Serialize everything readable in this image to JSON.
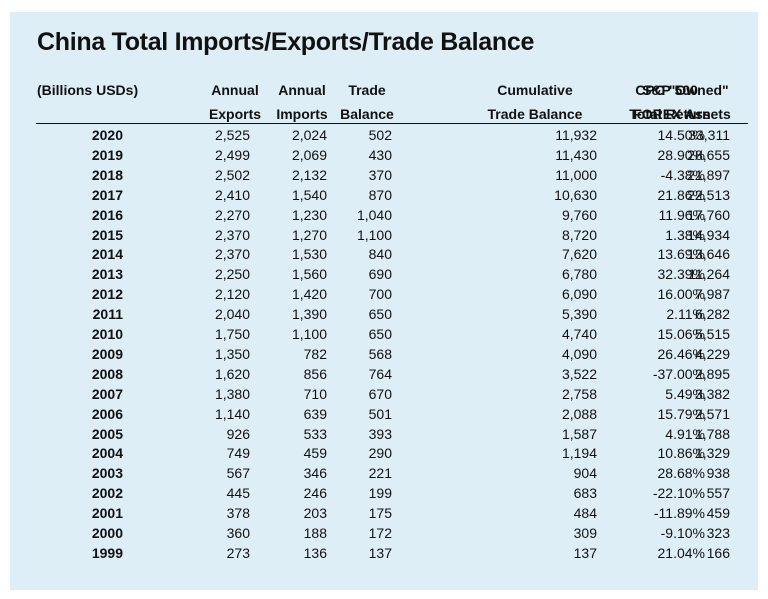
{
  "title": "China Total Imports/Exports/Trade Balance",
  "colors": {
    "background": "#deeef6",
    "text": "#111111"
  },
  "chart_data": {
    "type": "table",
    "title": "China Total Imports/Exports/Trade Balance",
    "unit_note": "(Billions USDs)",
    "columns": [
      [
        "Annual",
        "Exports"
      ],
      [
        "Annual",
        "Imports"
      ],
      [
        "Trade",
        "Balance"
      ],
      [
        "Cumulative",
        "Trade Balance"
      ],
      [
        "S&P 500",
        "Total Return"
      ],
      [
        "CPC \"Owned\"",
        "FOREX Assets"
      ]
    ],
    "rows": [
      [
        "2020",
        "2,525",
        "2,024",
        "502",
        "11,932",
        "14.50%",
        "33,311"
      ],
      [
        "2019",
        "2,499",
        "2,069",
        "430",
        "11,430",
        "28.90%",
        "28,655"
      ],
      [
        "2018",
        "2,502",
        "2,132",
        "370",
        "11,000",
        "-4.38%",
        "21,897"
      ],
      [
        "2017",
        "2,410",
        "1,540",
        "870",
        "10,630",
        "21.86%",
        "22,513"
      ],
      [
        "2016",
        "2,270",
        "1,230",
        "1,040",
        "9,760",
        "11.96%",
        "17,760"
      ],
      [
        "2015",
        "2,370",
        "1,270",
        "1,100",
        "8,720",
        "1.38%",
        "14,934"
      ],
      [
        "2014",
        "2,370",
        "1,530",
        "840",
        "7,620",
        "13.69%",
        "13,646"
      ],
      [
        "2013",
        "2,250",
        "1,560",
        "690",
        "6,780",
        "32.39%",
        "11,264"
      ],
      [
        "2012",
        "2,120",
        "1,420",
        "700",
        "6,090",
        "16.00%",
        "7,987"
      ],
      [
        "2011",
        "2,040",
        "1,390",
        "650",
        "5,390",
        "2.11%",
        "6,282"
      ],
      [
        "2010",
        "1,750",
        "1,100",
        "650",
        "4,740",
        "15.06%",
        "5,515"
      ],
      [
        "2009",
        "1,350",
        "782",
        "568",
        "4,090",
        "26.46%",
        "4,229"
      ],
      [
        "2008",
        "1,620",
        "856",
        "764",
        "3,522",
        "-37.00%",
        "2,895"
      ],
      [
        "2007",
        "1,380",
        "710",
        "670",
        "2,758",
        "5.49%",
        "3,382"
      ],
      [
        "2006",
        "1,140",
        "639",
        "501",
        "2,088",
        "15.79%",
        "2,571"
      ],
      [
        "2005",
        "926",
        "533",
        "393",
        "1,587",
        "4.91%",
        "1,788"
      ],
      [
        "2004",
        "749",
        "459",
        "290",
        "1,194",
        "10.86%",
        "1,329"
      ],
      [
        "2003",
        "567",
        "346",
        "221",
        "904",
        "28.68%",
        "938"
      ],
      [
        "2002",
        "445",
        "246",
        "199",
        "683",
        "-22.10%",
        "557"
      ],
      [
        "2001",
        "378",
        "203",
        "175",
        "484",
        "-11.89%",
        "459"
      ],
      [
        "2000",
        "360",
        "188",
        "172",
        "309",
        "-9.10%",
        "323"
      ],
      [
        "1999",
        "273",
        "136",
        "137",
        "137",
        "21.04%",
        "166"
      ]
    ]
  }
}
